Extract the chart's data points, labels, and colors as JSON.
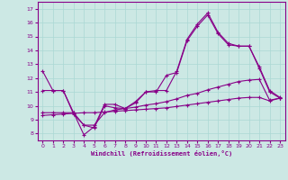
{
  "xlabel": "Windchill (Refroidissement éolien,°C)",
  "bg_color": "#cce8e4",
  "grid_color": "#aad8d4",
  "line_color": "#880088",
  "x_ticks": [
    0,
    1,
    2,
    3,
    4,
    5,
    6,
    7,
    8,
    9,
    10,
    11,
    12,
    13,
    14,
    15,
    16,
    17,
    18,
    19,
    20,
    21,
    22,
    23
  ],
  "y_ticks": [
    8,
    9,
    10,
    11,
    12,
    13,
    14,
    15,
    16,
    17
  ],
  "ylim": [
    7.5,
    17.5
  ],
  "xlim": [
    -0.5,
    23.5
  ],
  "line1_x": [
    0,
    1,
    2,
    3,
    4,
    5,
    6,
    7,
    8,
    9,
    10,
    11,
    12,
    13,
    14,
    15,
    16,
    17,
    18,
    19,
    20,
    21,
    22,
    23
  ],
  "line1_y": [
    12.5,
    11.1,
    11.1,
    9.5,
    7.9,
    8.5,
    10.1,
    10.1,
    9.8,
    10.3,
    11.0,
    11.1,
    11.1,
    12.5,
    14.8,
    15.9,
    16.7,
    15.3,
    14.5,
    14.3,
    14.3,
    12.8,
    11.1,
    10.6
  ],
  "line2_x": [
    0,
    1,
    2,
    3,
    4,
    5,
    6,
    7,
    8,
    9,
    10,
    11,
    12,
    13,
    14,
    15,
    16,
    17,
    18,
    19,
    20,
    21,
    22,
    23
  ],
  "line2_y": [
    11.1,
    11.1,
    11.1,
    9.4,
    8.6,
    8.4,
    10.0,
    9.85,
    9.8,
    10.2,
    11.0,
    11.0,
    12.2,
    12.4,
    14.7,
    15.75,
    16.55,
    15.2,
    14.4,
    14.3,
    14.3,
    12.7,
    11.0,
    10.55
  ],
  "line3_x": [
    0,
    1,
    2,
    3,
    4,
    5,
    6,
    7,
    8,
    9,
    10,
    11,
    12,
    13,
    14,
    15,
    16,
    17,
    18,
    19,
    20,
    21,
    22,
    23
  ],
  "line3_y": [
    9.5,
    9.5,
    9.5,
    9.5,
    8.6,
    8.6,
    9.5,
    9.7,
    9.8,
    9.9,
    10.05,
    10.15,
    10.3,
    10.5,
    10.75,
    10.9,
    11.15,
    11.35,
    11.55,
    11.75,
    11.85,
    11.9,
    10.4,
    10.55
  ],
  "line4_x": [
    0,
    1,
    2,
    3,
    4,
    5,
    6,
    7,
    8,
    9,
    10,
    11,
    12,
    13,
    14,
    15,
    16,
    17,
    18,
    19,
    20,
    21,
    22,
    23
  ],
  "line4_y": [
    9.3,
    9.35,
    9.4,
    9.45,
    9.5,
    9.5,
    9.55,
    9.6,
    9.65,
    9.7,
    9.75,
    9.8,
    9.85,
    9.95,
    10.05,
    10.15,
    10.25,
    10.35,
    10.45,
    10.55,
    10.6,
    10.6,
    10.35,
    10.55
  ]
}
